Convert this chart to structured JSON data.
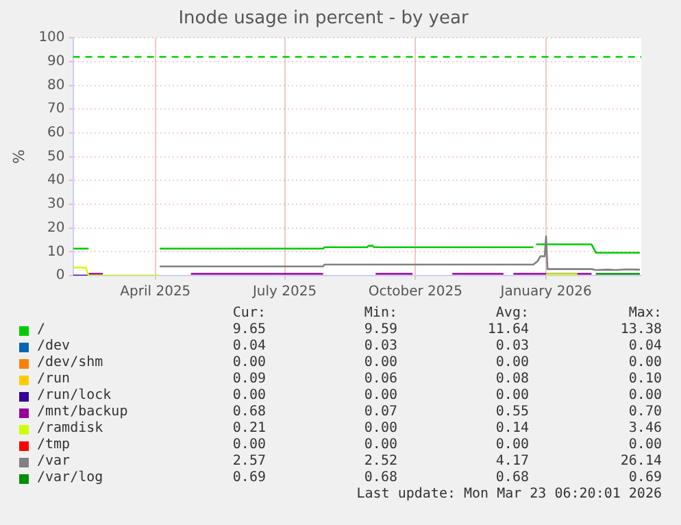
{
  "chart_data": {
    "type": "line",
    "title": "Inode usage in percent - by year",
    "ylabel": "%",
    "xlim": [
      "2025-02-16",
      "2026-03-23"
    ],
    "xticks": [
      {
        "value": "2025-04-15",
        "label": "April 2025"
      },
      {
        "value": "2025-07-15",
        "label": "July 2025"
      },
      {
        "value": "2025-10-15",
        "label": "October 2025"
      },
      {
        "value": "2026-01-15",
        "label": "January 2026"
      }
    ],
    "ylim": [
      0,
      100
    ],
    "yticks": [
      0,
      10,
      20,
      30,
      40,
      50,
      60,
      70,
      80,
      90,
      100
    ],
    "grid": true,
    "legend": "bottom",
    "series": [
      {
        "name": "/",
        "color": "#00cc00",
        "x": [
          "2025-02-16",
          "2025-02-27",
          "2025-02-28",
          "2025-04-18",
          "2025-08-11",
          "2025-08-12",
          "2025-09-11",
          "2025-09-12",
          "2025-09-15",
          "2025-09-16",
          "2026-01-06",
          "2026-01-07",
          "2026-01-08",
          "2026-02-16",
          "2026-02-19",
          "2026-03-22"
        ],
        "values": [
          11.3,
          11.3,
          null,
          11.3,
          11.3,
          11.9,
          11.9,
          12.5,
          12.5,
          11.9,
          11.9,
          null,
          13.1,
          13.1,
          9.6,
          9.6
        ]
      },
      {
        "name": "/dev",
        "color": "#0066b3"
      },
      {
        "name": "/dev/shm",
        "color": "#ff8000"
      },
      {
        "name": "/run",
        "color": "#ffcc00"
      },
      {
        "name": "/run/lock",
        "color": "#330099",
        "x": [
          "2025-02-16",
          "2025-02-27"
        ],
        "values": [
          0,
          0
        ]
      },
      {
        "name": "/mnt/backup",
        "color": "#990099",
        "x": [
          "2025-02-27",
          "2025-03-09",
          "2025-03-10",
          "2025-05-10",
          "2025-08-11",
          "2025-08-12",
          "2025-09-17",
          "2025-10-13",
          "2025-10-14",
          "2025-11-10",
          "2025-12-16",
          "2025-12-17",
          "2025-12-23",
          "2026-02-16"
        ],
        "values": [
          0.7,
          0.7,
          null,
          0.7,
          0.7,
          null,
          0.7,
          0.7,
          null,
          0.7,
          0.7,
          null,
          0.7,
          0.7
        ]
      },
      {
        "name": "/ramdisk",
        "color": "#ccff00",
        "x": [
          "2025-02-16",
          "2025-02-25",
          "2025-02-27",
          "2025-04-18",
          "2025-04-19",
          "2026-01-15",
          "2026-02-06"
        ],
        "values": [
          3.3,
          3.3,
          0,
          0,
          null,
          0.6,
          0.6
        ]
      },
      {
        "name": "/tmp",
        "color": "#ff0000"
      },
      {
        "name": "/var",
        "color": "#808080",
        "x": [
          "2025-04-18",
          "2025-08-11",
          "2025-08-12",
          "2026-01-06",
          "2026-01-09",
          "2026-01-11",
          "2026-01-14",
          "2026-01-15",
          "2026-01-16",
          "2026-02-16",
          "2026-02-19",
          "2026-02-28",
          "2026-03-05",
          "2026-03-12",
          "2026-03-22"
        ],
        "values": [
          3.8,
          3.8,
          4.6,
          4.6,
          6,
          8.1,
          8.1,
          16.5,
          2.7,
          2.7,
          2.3,
          2.5,
          2.3,
          2.6,
          2.5
        ]
      },
      {
        "name": "/var/log",
        "color": "#008f00",
        "x": [
          "2026-02-19",
          "2026-03-22"
        ],
        "values": [
          0.7,
          0.7
        ]
      }
    ],
    "ref_lines": [
      {
        "axis": "y",
        "value": 92,
        "color": "#00cc00",
        "line_style": "dashed"
      }
    ],
    "annotations": [
      "Cur:",
      "Min:",
      "Avg:",
      "Max:",
      "9.65",
      "9.59",
      "11.64",
      "13.38",
      "0.04",
      "0.03",
      "0.03",
      "0.04",
      "0.00",
      "0.00",
      "0.00",
      "0.00",
      "0.09",
      "0.06",
      "0.08",
      "0.10",
      "0.00",
      "0.00",
      "0.00",
      "0.00",
      "0.68",
      "0.07",
      "0.55",
      "0.70",
      "0.21",
      "0.00",
      "0.14",
      "3.46",
      "0.00",
      "0.00",
      "0.00",
      "0.00",
      "2.57",
      "2.52",
      "4.17",
      "26.14",
      "0.69",
      "0.68",
      "0.68",
      "0.69",
      "Last update: Mon Mar 23 06:20:01 2026"
    ]
  }
}
